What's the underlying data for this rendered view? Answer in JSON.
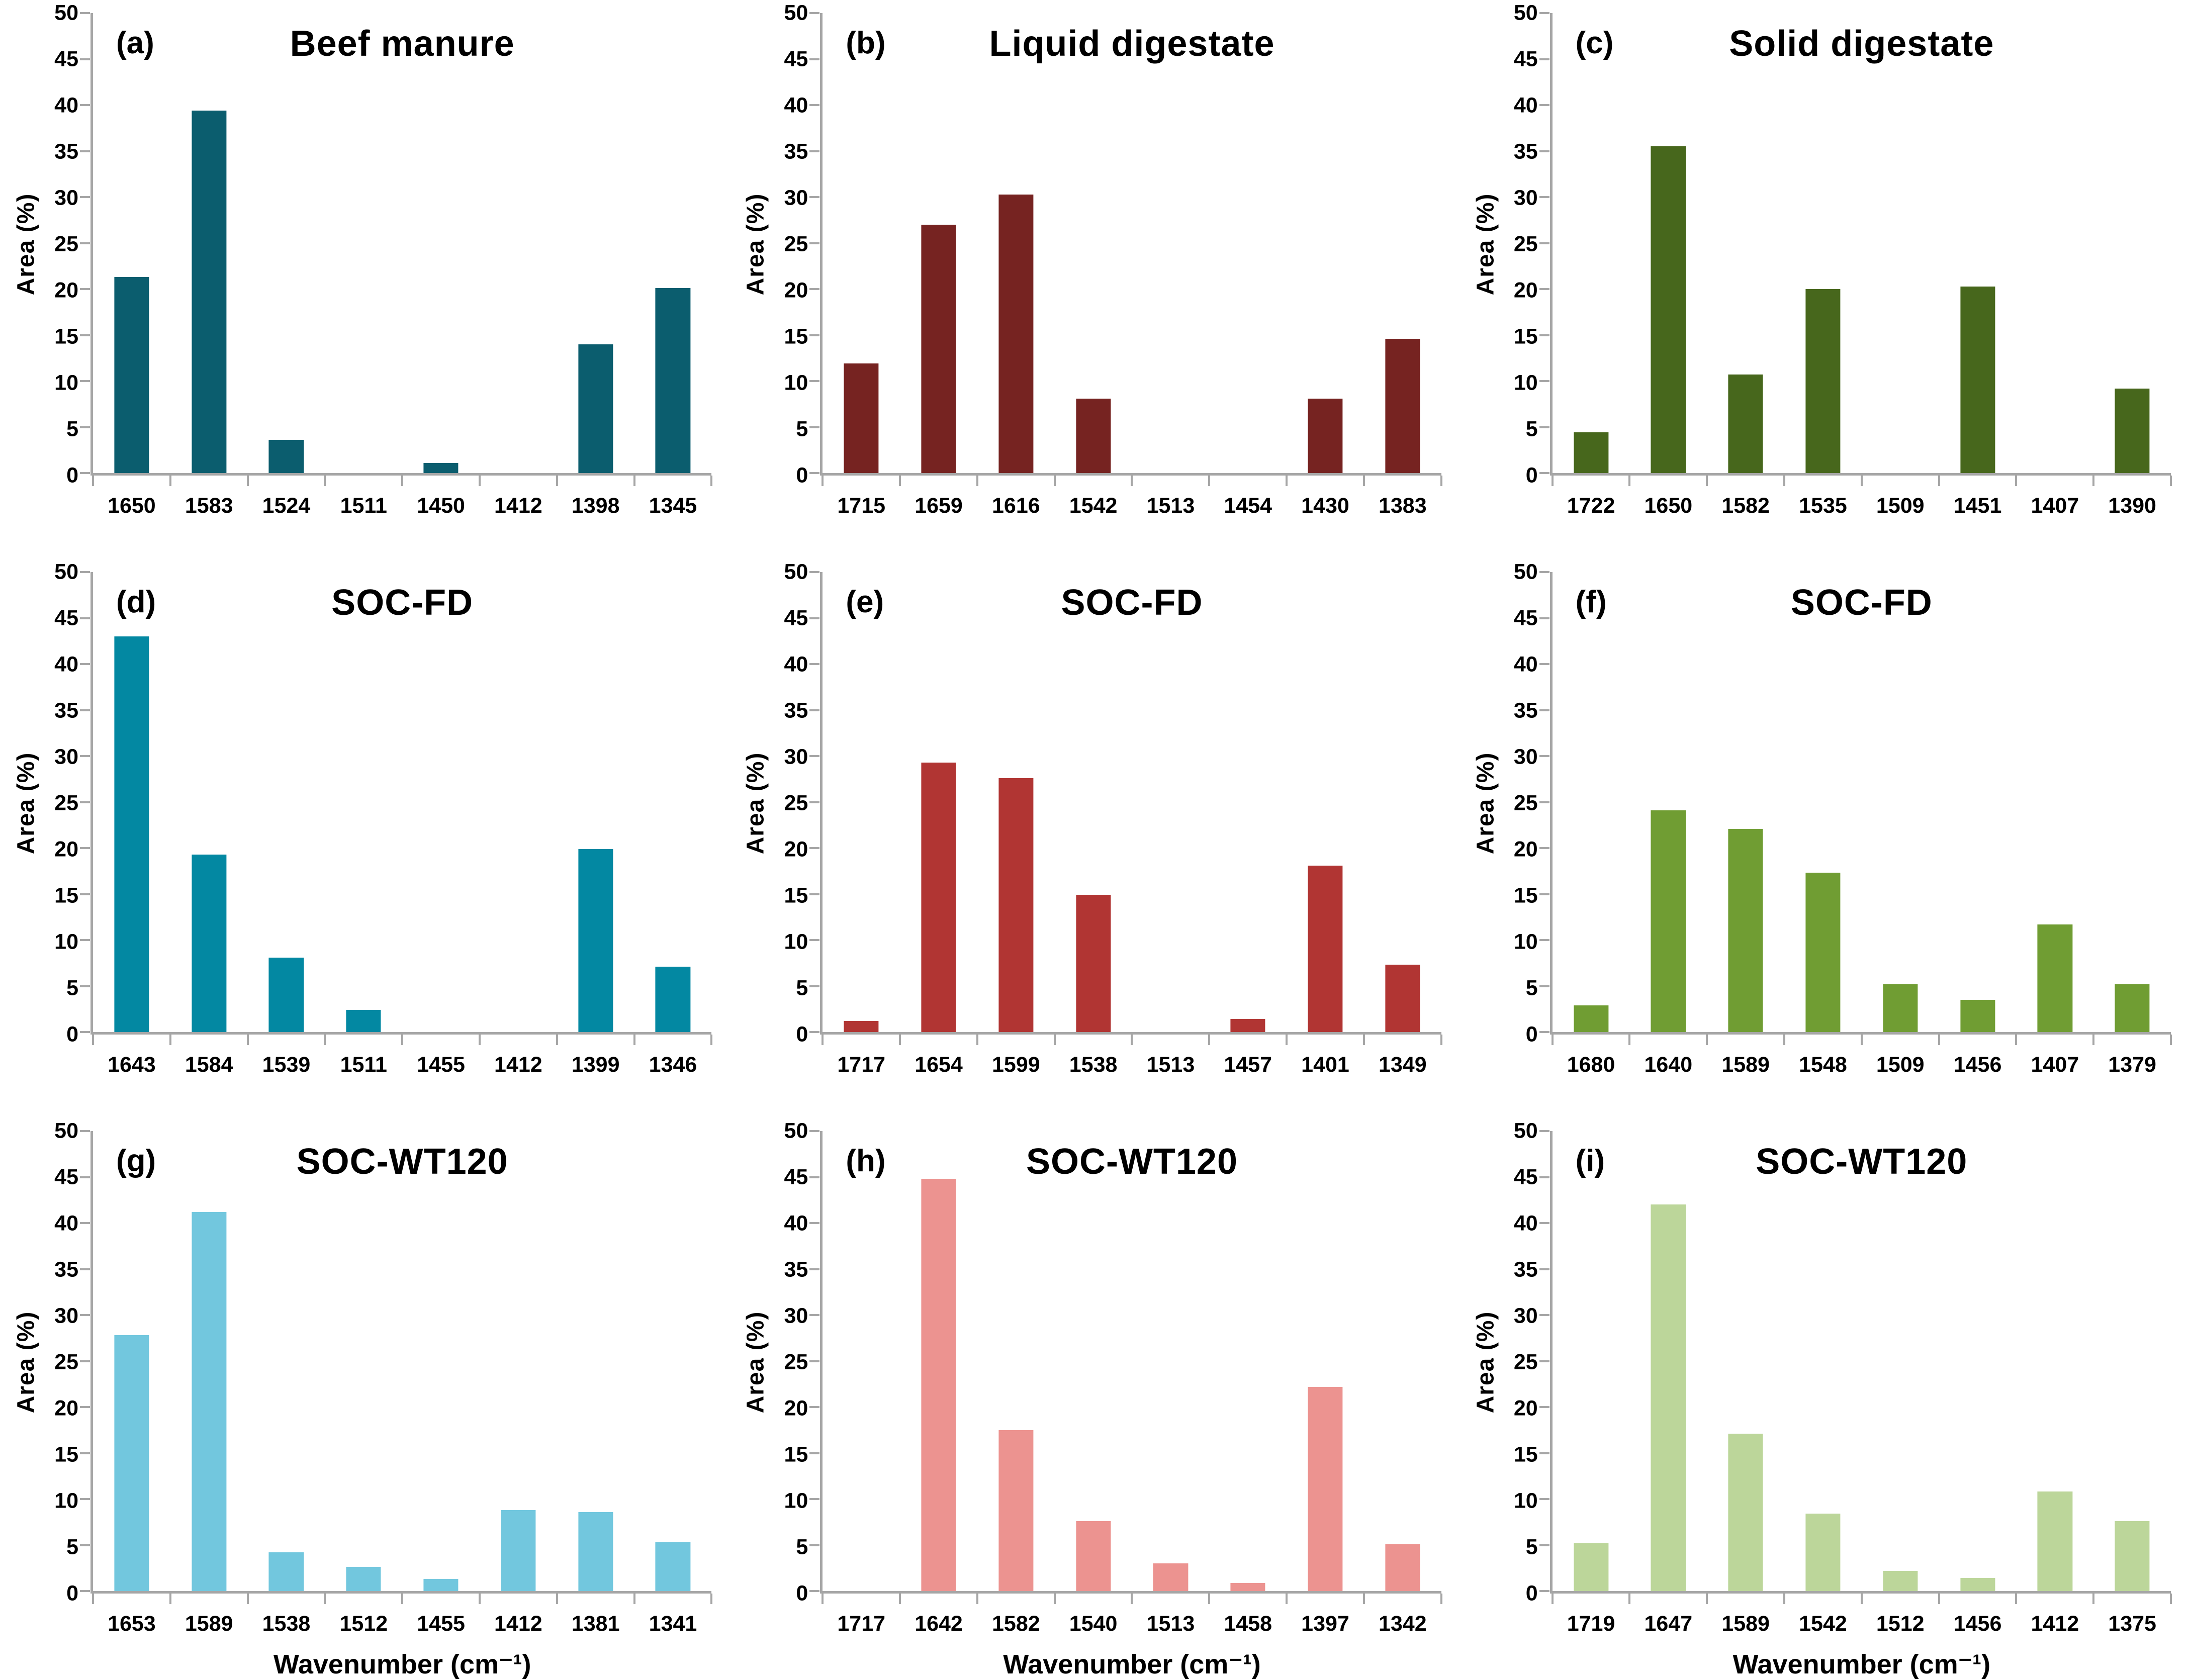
{
  "figure": {
    "y_axis_label": "Area (%)",
    "x_axis_label": "Wavenumber (cm⁻¹)",
    "y_ticks": [
      0,
      5,
      10,
      15,
      20,
      25,
      30,
      35,
      40,
      45,
      50
    ],
    "ylim": [
      0,
      50
    ],
    "axis_color": "#a6a6a6",
    "text_color": "#000000",
    "background_color": "#ffffff"
  },
  "chart_data": [
    {
      "type": "bar",
      "panel": "(a)",
      "title": "Beef manure",
      "color": "#0b5d6e",
      "ylabel": "Area (%)",
      "xlabel": "",
      "ylim": [
        0,
        50
      ],
      "grid": false,
      "legend": false,
      "categories": [
        "1650",
        "1583",
        "1524",
        "1511",
        "1450",
        "1412",
        "1398",
        "1345"
      ],
      "values": [
        21.3,
        39.4,
        3.6,
        0,
        1.1,
        0,
        14.0,
        20.1
      ]
    },
    {
      "type": "bar",
      "panel": "(b)",
      "title": "Liquid digestate",
      "color": "#762321",
      "ylabel": "Area (%)",
      "xlabel": "",
      "ylim": [
        0,
        50
      ],
      "grid": false,
      "legend": false,
      "categories": [
        "1715",
        "1659",
        "1616",
        "1542",
        "1513",
        "1454",
        "1430",
        "1383"
      ],
      "values": [
        11.9,
        27.0,
        30.3,
        8.1,
        0,
        0,
        8.1,
        14.6
      ]
    },
    {
      "type": "bar",
      "panel": "(c)",
      "title": "Solid digestate",
      "color": "#47671c",
      "ylabel": "Area (%)",
      "xlabel": "",
      "ylim": [
        0,
        50
      ],
      "grid": false,
      "legend": false,
      "categories": [
        "1722",
        "1650",
        "1582",
        "1535",
        "1509",
        "1451",
        "1407",
        "1390"
      ],
      "values": [
        4.4,
        35.5,
        10.7,
        20.0,
        0,
        20.3,
        0,
        9.2
      ]
    },
    {
      "type": "bar",
      "panel": "(d)",
      "title": "SOC-FD",
      "color": "#0388a2",
      "ylabel": "Area (%)",
      "xlabel": "",
      "ylim": [
        0,
        50
      ],
      "grid": false,
      "legend": false,
      "categories": [
        "1643",
        "1584",
        "1539",
        "1511",
        "1455",
        "1412",
        "1399",
        "1346"
      ],
      "values": [
        43.0,
        19.3,
        8.1,
        2.4,
        0,
        0,
        19.9,
        7.1
      ]
    },
    {
      "type": "bar",
      "panel": "(e)",
      "title": "SOC-FD",
      "color": "#b13533",
      "ylabel": "Area (%)",
      "xlabel": "",
      "ylim": [
        0,
        50
      ],
      "grid": false,
      "legend": false,
      "categories": [
        "1717",
        "1654",
        "1599",
        "1538",
        "1513",
        "1457",
        "1401",
        "1349"
      ],
      "values": [
        1.2,
        29.3,
        27.6,
        14.9,
        0,
        1.4,
        18.1,
        7.3
      ]
    },
    {
      "type": "bar",
      "panel": "(f)",
      "title": "SOC-FD",
      "color": "#709d33",
      "ylabel": "Area (%)",
      "xlabel": "",
      "ylim": [
        0,
        50
      ],
      "grid": false,
      "legend": false,
      "categories": [
        "1680",
        "1640",
        "1589",
        "1548",
        "1509",
        "1456",
        "1407",
        "1379"
      ],
      "values": [
        2.9,
        24.1,
        22.1,
        17.3,
        5.2,
        3.5,
        11.7,
        5.2
      ]
    },
    {
      "type": "bar",
      "panel": "(g)",
      "title": "SOC-WT120",
      "color": "#72c7de",
      "ylabel": "Area (%)",
      "xlabel": "Wavenumber (cm⁻¹)",
      "ylim": [
        0,
        50
      ],
      "grid": false,
      "legend": false,
      "categories": [
        "1653",
        "1589",
        "1538",
        "1512",
        "1455",
        "1412",
        "1381",
        "1341"
      ],
      "values": [
        27.8,
        41.2,
        4.2,
        2.6,
        1.3,
        8.8,
        8.6,
        5.3
      ]
    },
    {
      "type": "bar",
      "panel": "(h)",
      "title": "SOC-WT120",
      "color": "#ec9390",
      "ylabel": "Area (%)",
      "xlabel": "Wavenumber (cm⁻¹)",
      "ylim": [
        0,
        50
      ],
      "grid": false,
      "legend": false,
      "categories": [
        "1717",
        "1642",
        "1582",
        "1540",
        "1513",
        "1458",
        "1397",
        "1342"
      ],
      "values": [
        0,
        44.8,
        17.5,
        7.6,
        3.0,
        0.9,
        22.2,
        5.1
      ]
    },
    {
      "type": "bar",
      "panel": "(i)",
      "title": "SOC-WT120",
      "color": "#bcd69a",
      "ylabel": "Area (%)",
      "xlabel": "Wavenumber (cm⁻¹)",
      "ylim": [
        0,
        50
      ],
      "grid": false,
      "legend": false,
      "categories": [
        "1719",
        "1647",
        "1589",
        "1542",
        "1512",
        "1456",
        "1412",
        "1375"
      ],
      "values": [
        5.2,
        42.0,
        17.1,
        8.4,
        2.2,
        1.4,
        10.8,
        7.6
      ]
    }
  ]
}
